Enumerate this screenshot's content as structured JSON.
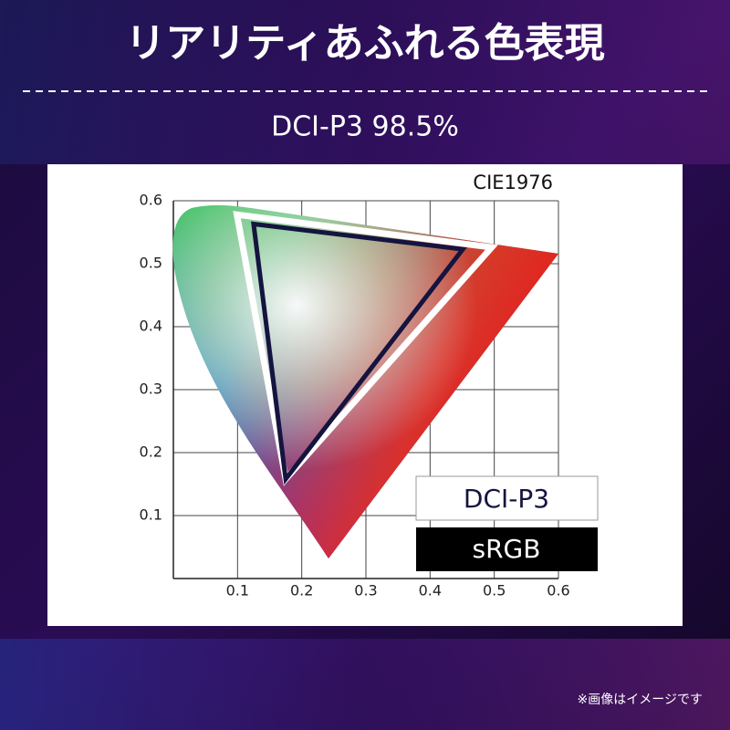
{
  "header": {
    "title": "リアリティあふれる色表現",
    "subtitle": "DCI-P3 98.5%"
  },
  "note": "※画像はイメージです",
  "chart_data": {
    "type": "gamut",
    "title": "CIE1976",
    "xlim": [
      0,
      0.6
    ],
    "ylim": [
      0,
      0.6
    ],
    "xticks": [
      0.1,
      0.2,
      0.3,
      0.4,
      0.5,
      0.6
    ],
    "yticks": [
      0.1,
      0.2,
      0.3,
      0.4,
      0.5,
      0.6
    ],
    "grid": true,
    "series": [
      {
        "name": "DCI-P3",
        "color": "#ffffff",
        "x": [
          0.099,
          0.496,
          0.175
        ],
        "values": [
          0.578,
          0.526,
          0.158
        ]
      },
      {
        "name": "sRGB",
        "color": "#15143f",
        "x": [
          0.125,
          0.451,
          0.175
        ],
        "values": [
          0.563,
          0.523,
          0.158
        ]
      }
    ]
  }
}
